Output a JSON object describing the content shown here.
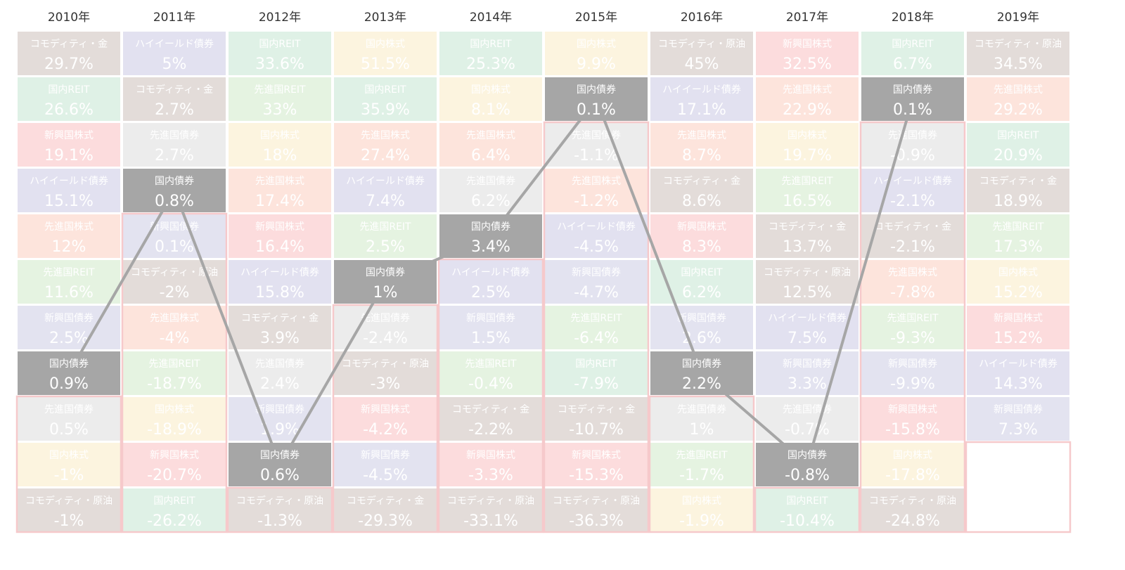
{
  "chart_data": {
    "type": "heatmap",
    "title": "",
    "highlight_asset": "国内債券",
    "years": [
      "2010年",
      "2011年",
      "2012年",
      "2013年",
      "2014年",
      "2015年",
      "2016年",
      "2017年",
      "2018年",
      "2019年"
    ],
    "asset_colors": {
      "コモディティ・金": "#e3dcd9",
      "コモディティ・原油": "#e3dcd9",
      "ハイイールド債券": "#e2e1f0",
      "国内REIT": "#dff1e6",
      "先進国REIT": "#e5f3e1",
      "新興国株式": "#fcdcdd",
      "先進国株式": "#fde4dc",
      "国内株式": "#fcf4df",
      "先進国債券": "#ececec",
      "新興国債券": "#e3e3f0",
      "国内債券": "#a6a6a6"
    },
    "columns": [
      [
        {
          "asset": "コモディティ・金",
          "value": "29.7%"
        },
        {
          "asset": "国内REIT",
          "value": "26.6%"
        },
        {
          "asset": "新興国株式",
          "value": "19.1%"
        },
        {
          "asset": "ハイイールド債券",
          "value": "15.1%"
        },
        {
          "asset": "先進国株式",
          "value": "12%"
        },
        {
          "asset": "先進国REIT",
          "value": "11.6%"
        },
        {
          "asset": "新興国債券",
          "value": "2.5%"
        },
        {
          "asset": "国内債券",
          "value": "0.9%"
        },
        {
          "asset": "先進国債券",
          "value": "0.5%"
        },
        {
          "asset": "国内株式",
          "value": "-1%"
        },
        {
          "asset": "コモディティ・原油",
          "value": "-1%"
        }
      ],
      [
        {
          "asset": "ハイイールド債券",
          "value": "5%"
        },
        {
          "asset": "コモディティ・金",
          "value": "2.7%"
        },
        {
          "asset": "先進国債券",
          "value": "2.7%"
        },
        {
          "asset": "国内債券",
          "value": "0.8%"
        },
        {
          "asset": "新興国債券",
          "value": "0.1%"
        },
        {
          "asset": "コモディティ・原油",
          "value": "-2%"
        },
        {
          "asset": "先進国株式",
          "value": "-4%"
        },
        {
          "asset": "先進国REIT",
          "value": "-18.7%"
        },
        {
          "asset": "国内株式",
          "value": "-18.9%"
        },
        {
          "asset": "新興国株式",
          "value": "-20.7%"
        },
        {
          "asset": "国内REIT",
          "value": "-26.2%"
        }
      ],
      [
        {
          "asset": "国内REIT",
          "value": "33.6%"
        },
        {
          "asset": "先進国REIT",
          "value": "33%"
        },
        {
          "asset": "国内株式",
          "value": "18%"
        },
        {
          "asset": "先進国株式",
          "value": "17.4%"
        },
        {
          "asset": "新興国株式",
          "value": "16.4%"
        },
        {
          "asset": "ハイイールド債券",
          "value": "15.8%"
        },
        {
          "asset": "コモディティ・金",
          "value": "3.9%"
        },
        {
          "asset": "先進国債券",
          "value": "2.4%"
        },
        {
          "asset": "新興国債券",
          "value": "1.9%"
        },
        {
          "asset": "国内債券",
          "value": "0.6%"
        },
        {
          "asset": "コモディティ・原油",
          "value": "-1.3%"
        }
      ],
      [
        {
          "asset": "国内株式",
          "value": "51.5%"
        },
        {
          "asset": "国内REIT",
          "value": "35.9%"
        },
        {
          "asset": "先進国株式",
          "value": "27.4%"
        },
        {
          "asset": "ハイイールド債券",
          "value": "7.4%"
        },
        {
          "asset": "先進国REIT",
          "value": "2.5%"
        },
        {
          "asset": "国内債券",
          "value": "1%"
        },
        {
          "asset": "先進国債券",
          "value": "-2.4%"
        },
        {
          "asset": "コモディティ・原油",
          "value": "-3%"
        },
        {
          "asset": "新興国株式",
          "value": "-4.2%"
        },
        {
          "asset": "新興国債券",
          "value": "-4.5%"
        },
        {
          "asset": "コモディティ・金",
          "value": "-29.3%"
        }
      ],
      [
        {
          "asset": "国内REIT",
          "value": "25.3%"
        },
        {
          "asset": "国内株式",
          "value": "8.1%"
        },
        {
          "asset": "先進国株式",
          "value": "6.4%"
        },
        {
          "asset": "先進国債券",
          "value": "6.2%"
        },
        {
          "asset": "国内債券",
          "value": "3.4%"
        },
        {
          "asset": "ハイイールド債券",
          "value": "2.5%"
        },
        {
          "asset": "新興国債券",
          "value": "1.5%"
        },
        {
          "asset": "先進国REIT",
          "value": "-0.4%"
        },
        {
          "asset": "コモディティ・金",
          "value": "-2.2%"
        },
        {
          "asset": "新興国株式",
          "value": "-3.3%"
        },
        {
          "asset": "コモディティ・原油",
          "value": "-33.1%"
        }
      ],
      [
        {
          "asset": "国内株式",
          "value": "9.9%"
        },
        {
          "asset": "国内債券",
          "value": "0.1%"
        },
        {
          "asset": "先進国債券",
          "value": "-1.1%"
        },
        {
          "asset": "先進国株式",
          "value": "-1.2%"
        },
        {
          "asset": "ハイイールド債券",
          "value": "-4.5%"
        },
        {
          "asset": "新興国債券",
          "value": "-4.7%"
        },
        {
          "asset": "先進国REIT",
          "value": "-6.4%"
        },
        {
          "asset": "国内REIT",
          "value": "-7.9%"
        },
        {
          "asset": "コモディティ・金",
          "value": "-10.7%"
        },
        {
          "asset": "新興国株式",
          "value": "-15.3%"
        },
        {
          "asset": "コモディティ・原油",
          "value": "-36.3%"
        }
      ],
      [
        {
          "asset": "コモディティ・原油",
          "value": "45%"
        },
        {
          "asset": "ハイイールド債券",
          "value": "17.1%"
        },
        {
          "asset": "先進国株式",
          "value": "8.7%"
        },
        {
          "asset": "コモディティ・金",
          "value": "8.6%"
        },
        {
          "asset": "新興国株式",
          "value": "8.3%"
        },
        {
          "asset": "国内REIT",
          "value": "6.2%"
        },
        {
          "asset": "新興国債券",
          "value": "2.6%"
        },
        {
          "asset": "国内債券",
          "value": "2.2%"
        },
        {
          "asset": "先進国債券",
          "value": "1%"
        },
        {
          "asset": "先進国REIT",
          "value": "-1.7%"
        },
        {
          "asset": "国内株式",
          "value": "-1.9%"
        }
      ],
      [
        {
          "asset": "新興国株式",
          "value": "32.5%"
        },
        {
          "asset": "先進国株式",
          "value": "22.9%"
        },
        {
          "asset": "国内株式",
          "value": "19.7%"
        },
        {
          "asset": "先進国REIT",
          "value": "16.5%"
        },
        {
          "asset": "コモディティ・金",
          "value": "13.7%"
        },
        {
          "asset": "コモディティ・原油",
          "value": "12.5%"
        },
        {
          "asset": "ハイイールド債券",
          "value": "7.5%"
        },
        {
          "asset": "新興国債券",
          "value": "3.3%"
        },
        {
          "asset": "先進国債券",
          "value": "-0.7%"
        },
        {
          "asset": "国内債券",
          "value": "-0.8%"
        },
        {
          "asset": "国内REIT",
          "value": "-10.4%"
        }
      ],
      [
        {
          "asset": "国内REIT",
          "value": "6.7%"
        },
        {
          "asset": "国内債券",
          "value": "0.1%"
        },
        {
          "asset": "先進国債券",
          "value": "-0.9%"
        },
        {
          "asset": "ハイイールド債券",
          "value": "-2.1%"
        },
        {
          "asset": "コモディティ・金",
          "value": "-2.1%"
        },
        {
          "asset": "先進国株式",
          "value": "-7.8%"
        },
        {
          "asset": "先進国REIT",
          "value": "-9.3%"
        },
        {
          "asset": "新興国債券",
          "value": "-9.9%"
        },
        {
          "asset": "新興国株式",
          "value": "-15.8%"
        },
        {
          "asset": "国内株式",
          "value": "-17.8%"
        },
        {
          "asset": "コモディティ・原油",
          "value": "-24.8%"
        }
      ],
      [
        {
          "asset": "コモディティ・原油",
          "value": "34.5%"
        },
        {
          "asset": "先進国株式",
          "value": "29.2%"
        },
        {
          "asset": "国内REIT",
          "value": "20.9%"
        },
        {
          "asset": "コモディティ・金",
          "value": "18.9%"
        },
        {
          "asset": "先進国REIT",
          "value": "17.3%"
        },
        {
          "asset": "国内株式",
          "value": "15.2%"
        },
        {
          "asset": "新興国株式",
          "value": "15.2%"
        },
        {
          "asset": "ハイイールド債券",
          "value": "14.3%"
        },
        {
          "asset": "新興国債券",
          "value": "7.3%"
        }
      ]
    ]
  }
}
